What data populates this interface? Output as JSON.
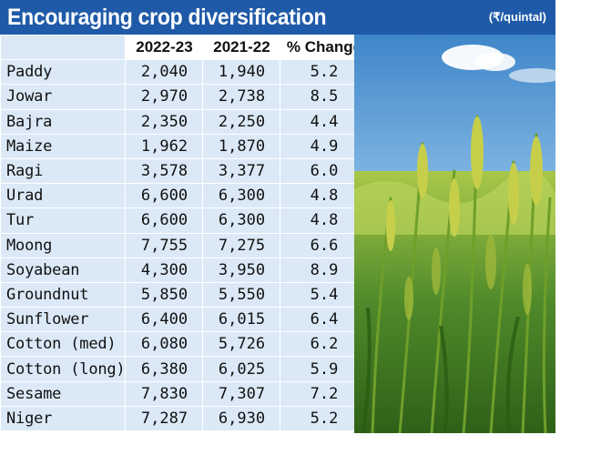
{
  "header": {
    "title": "Encouraging crop diversification",
    "unit": "(₹/quintal)"
  },
  "colors": {
    "banner": "#1f5aa8",
    "row_fill": "#dbe9f7"
  },
  "chart_data": {
    "type": "table",
    "title": "Encouraging crop diversification",
    "unit": "(₹/quintal)",
    "columns": [
      "",
      "2022-23",
      "2021-22",
      "% Change"
    ],
    "rows": [
      [
        "Paddy",
        "2,040",
        "1,940",
        "5.2"
      ],
      [
        "Jowar",
        "2,970",
        "2,738",
        "8.5"
      ],
      [
        "Bajra",
        "2,350",
        "2,250",
        "4.4"
      ],
      [
        "Maize",
        "1,962",
        "1,870",
        "4.9"
      ],
      [
        "Ragi",
        "3,578",
        "3,377",
        "6.0"
      ],
      [
        "Urad",
        "6,600",
        "6,300",
        "4.8"
      ],
      [
        "Tur",
        "6,600",
        "6,300",
        "4.8"
      ],
      [
        "Moong",
        "7,755",
        "7,275",
        "6.6"
      ],
      [
        "Soyabean",
        "4,300",
        "3,950",
        "8.9"
      ],
      [
        "Groundnut",
        "5,850",
        "5,550",
        "5.4"
      ],
      [
        "Sunflower",
        "6,400",
        "6,015",
        "6.4"
      ],
      [
        "Cotton (med)",
        "6,080",
        "5,726",
        "6.2"
      ],
      [
        "Cotton (long)",
        "6,380",
        "6,025",
        "5.9"
      ],
      [
        "Sesame",
        "7,830",
        "7,307",
        "7.2"
      ],
      [
        "Niger",
        "7,287",
        "6,930",
        "5.2"
      ]
    ]
  },
  "photo": {
    "subject": "rice-paddy-photo"
  }
}
